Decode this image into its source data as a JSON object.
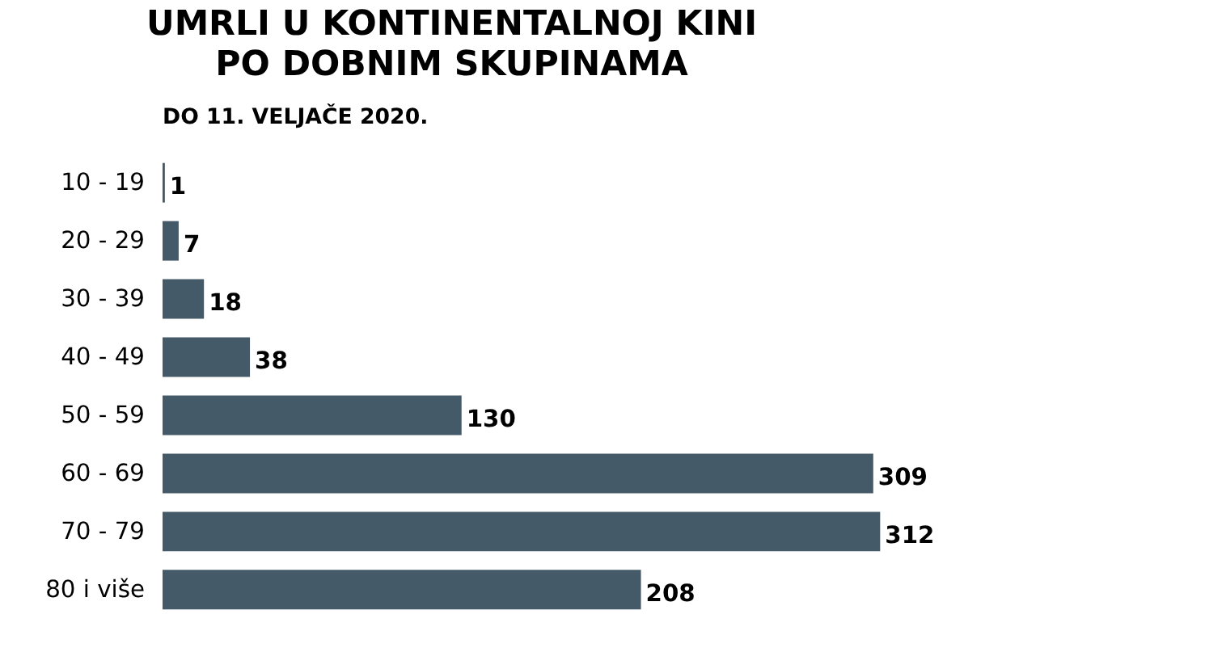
{
  "chart_data": {
    "type": "bar",
    "orientation": "horizontal",
    "title": "UMRLI U KONTINENTALNOJ KINI\nPO DOBNIM SKUPINAMA",
    "subtitle": "DO 11. VELJAČE 2020.",
    "categories": [
      "10 - 19",
      "20 - 29",
      "30 - 39",
      "40 - 49",
      "50 - 59",
      "60 - 69",
      "70 - 79",
      "80 i više"
    ],
    "values": [
      1,
      7,
      18,
      38,
      130,
      309,
      312,
      208
    ],
    "color": "#455a68",
    "data_labels": true,
    "tick_labels": "y",
    "grid": false
  }
}
